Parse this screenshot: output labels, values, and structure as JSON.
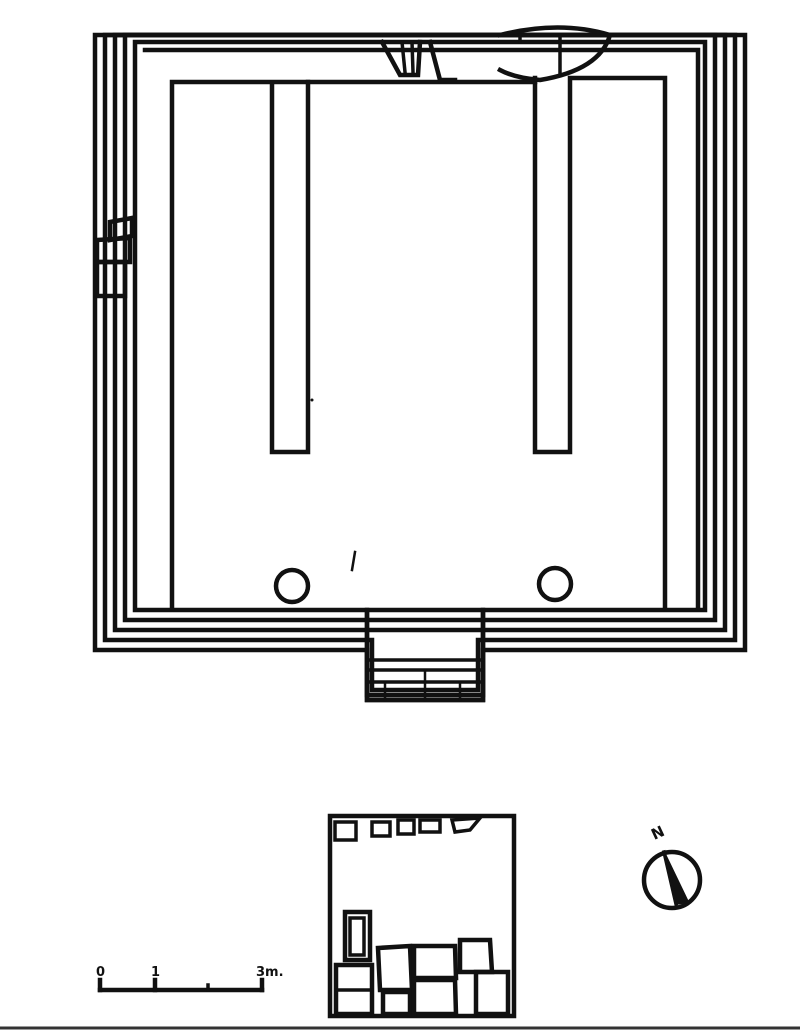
{
  "scale_bar": {
    "ticks": [
      "0",
      "1",
      "3m."
    ]
  },
  "north_arrow": {
    "label": "N",
    "icon": "north-arrow-icon"
  },
  "colors": {
    "ink": "#111111",
    "paper": "#ffffff"
  }
}
